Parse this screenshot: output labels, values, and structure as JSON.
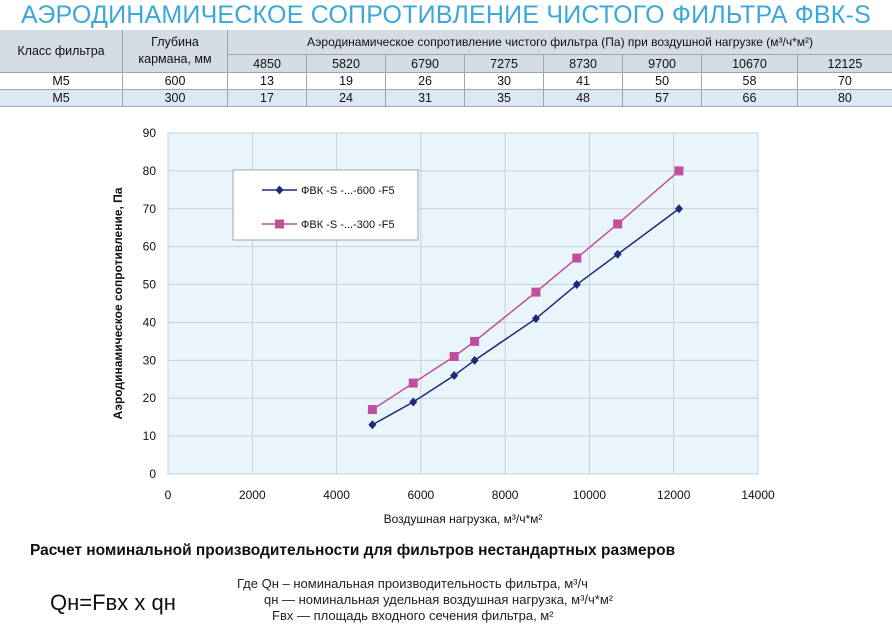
{
  "title": "АЭРОДИНАМИЧЕСКОЕ СОПРОТИВЛЕНИЕ ЧИСТОГО ФИЛЬТРА ФВК-S",
  "table": {
    "col_class": "Класс фильтра",
    "col_depth": "Глубина кармана, мм",
    "col_depth_line1": "Глубина",
    "col_depth_line2": "кармана, мм",
    "col_resistance": "Аэродинамическое сопротивление чистого фильтра (Па) при воздушной нагрузке (м³/ч*м²)",
    "airflows": [
      "4850",
      "5820",
      "6790",
      "7275",
      "8730",
      "9700",
      "10670",
      "12125"
    ],
    "rows": [
      {
        "class": "M5",
        "depth": "600",
        "values": [
          "13",
          "19",
          "26",
          "30",
          "41",
          "50",
          "58",
          "70"
        ]
      },
      {
        "class": "M5",
        "depth": "300",
        "values": [
          "17",
          "24",
          "31",
          "35",
          "48",
          "57",
          "66",
          "80"
        ]
      }
    ]
  },
  "chart_data": {
    "type": "line",
    "xlabel": "Воздушная нагрузка, м³/ч*м²",
    "ylabel": "Аэродинамическое сопротивление, Па",
    "xlim": [
      0,
      14000
    ],
    "ylim": [
      0,
      90
    ],
    "xticks": [
      "0",
      "2000",
      "4000",
      "6000",
      "8000",
      "10000",
      "12000",
      "14000"
    ],
    "yticks": [
      "0",
      "10",
      "20",
      "30",
      "40",
      "50",
      "60",
      "70",
      "80",
      "90"
    ],
    "grid": true,
    "legend_position": "top-left",
    "series": [
      {
        "name": "ФВК -S -...-600 -F5",
        "color": "#1e2a78",
        "marker": "diamond",
        "x": [
          4850,
          5820,
          6790,
          7275,
          8730,
          9700,
          10670,
          12125
        ],
        "values": [
          13,
          19,
          26,
          30,
          41,
          50,
          58,
          70
        ]
      },
      {
        "name": "ФВК -S -...-300 -F5",
        "color": "#c0509c",
        "marker": "square",
        "x": [
          4850,
          5820,
          6790,
          7275,
          8730,
          9700,
          10670,
          12125
        ],
        "values": [
          17,
          24,
          31,
          35,
          48,
          57,
          66,
          80
        ]
      }
    ],
    "plot_bg": "#eaf5fb"
  },
  "calc": {
    "heading": "Расчет номинальной производительности для фильтров нестандартных размеров",
    "formula": "Qн=Fвх x qн",
    "def1": "Где Qн – номинальная производительность фильтра, м³/ч",
    "def2": "qн — номинальная удельная воздушная нагрузка, м³/ч*м²",
    "def3": "Fвх — площадь входного сечения фильтра, м²"
  }
}
